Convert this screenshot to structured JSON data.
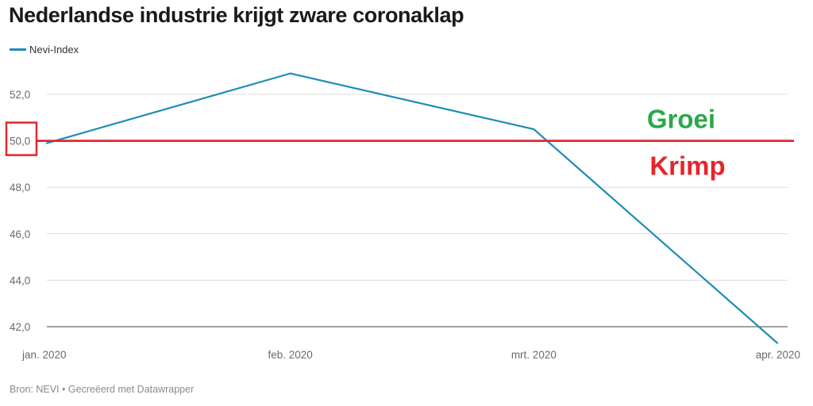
{
  "title": "Nederlandse industrie krijgt zware coronaklap",
  "footer": "Bron: NEVI • Gecreëerd met Datawrapper",
  "chart_data": {
    "type": "line",
    "title": "Nederlandse industrie krijgt zware coronaklap",
    "xlabel": "",
    "ylabel": "",
    "categories": [
      "jan. 2020",
      "feb. 2020",
      "mrt. 2020",
      "apr. 2020"
    ],
    "series": [
      {
        "name": "Nevi-Index",
        "color": "#1d8db5",
        "values": [
          49.9,
          52.9,
          50.5,
          41.3
        ]
      }
    ],
    "ylim": [
      41.3,
      53.0
    ],
    "yticks": [
      42,
      44,
      46,
      48,
      50,
      52
    ],
    "ytick_labels": [
      "42,0",
      "44,0",
      "46,0",
      "48,0",
      "50,0",
      "52,0"
    ],
    "grid": true,
    "legend": "top-left",
    "reference_line": {
      "value": 50,
      "color": "#e3262c"
    },
    "highlight_box_tick": "50,0",
    "annotations": [
      {
        "text": "Groei",
        "color": "#2aa84a",
        "position": "above reference line, right"
      },
      {
        "text": "Krimp",
        "color": "#e3262c",
        "position": "below reference line, right"
      }
    ]
  }
}
